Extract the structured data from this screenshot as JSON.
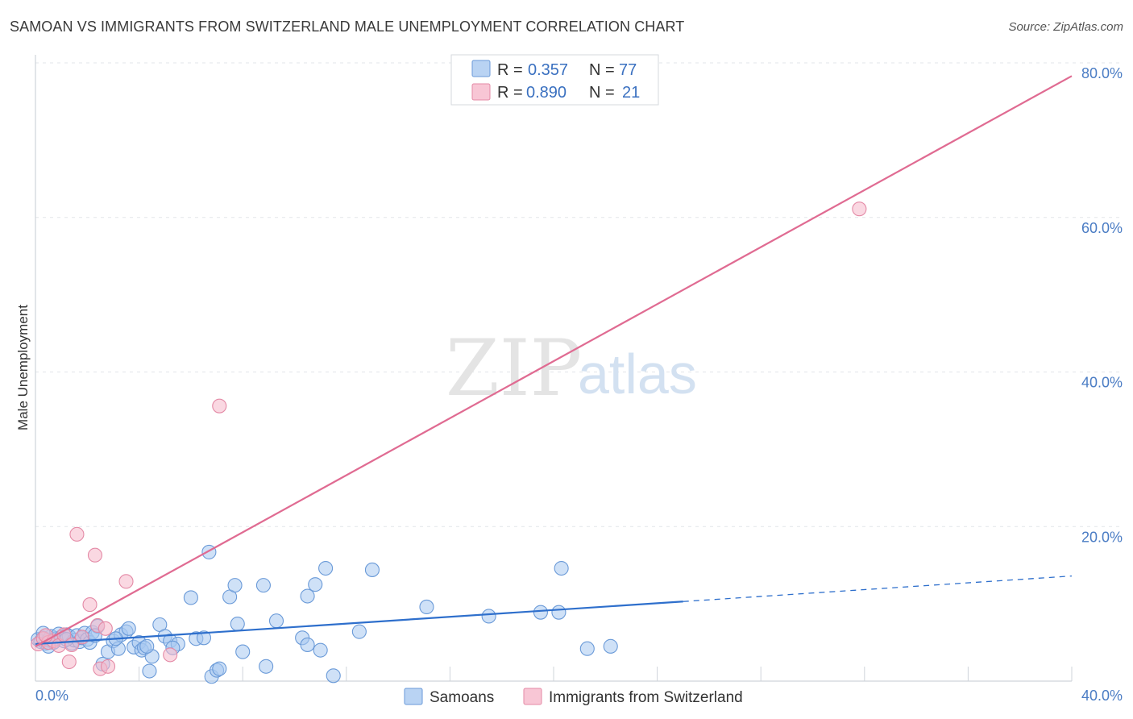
{
  "header": {
    "title": "SAMOAN VS IMMIGRANTS FROM SWITZERLAND MALE UNEMPLOYMENT CORRELATION CHART",
    "source": "Source: ZipAtlas.com"
  },
  "watermark": {
    "zip": "ZIP",
    "atlas": "atlas"
  },
  "legend_top": {
    "rows": [
      {
        "r_label": "R =",
        "r_value": "0.357",
        "n_label": "N =",
        "n_value": "77",
        "color": "#a8c8f0",
        "stroke": "#6a9ad8"
      },
      {
        "r_label": "R =",
        "r_value": "0.890",
        "n_label": "N =",
        "n_value": "21",
        "color": "#f6b8cb",
        "stroke": "#e48aa6"
      }
    ]
  },
  "legend_bottom": [
    {
      "label": "Samoans",
      "color": "#a8c8f0",
      "stroke": "#6a9ad8"
    },
    {
      "label": "Immigrants from Switzerland",
      "color": "#f6b8cb",
      "stroke": "#e48aa6"
    }
  ],
  "chart_data": {
    "type": "scatter",
    "title": "SAMOAN VS IMMIGRANTS FROM SWITZERLAND MALE UNEMPLOYMENT CORRELATION CHART",
    "xlabel": "",
    "ylabel": "Male Unemployment",
    "xlim": [
      0,
      40
    ],
    "ylim": [
      0,
      80
    ],
    "x_tick_labels": [
      {
        "value": 0,
        "label": "0.0%"
      },
      {
        "value": 40,
        "label": "40.0%"
      }
    ],
    "y_tick_labels": [
      {
        "value": 20,
        "label": "20.0%"
      },
      {
        "value": 40,
        "label": "40.0%"
      },
      {
        "value": 60,
        "label": "60.0%"
      },
      {
        "value": 80,
        "label": "80.0%"
      }
    ],
    "grid": true,
    "series": [
      {
        "name": "Samoans",
        "color": "#a8c8f0",
        "stroke": "#6a9ad8",
        "line_color": "#2e6fcc",
        "trend": {
          "x0": 0,
          "y0": 4.8,
          "x1": 25.0,
          "y1": 10.3,
          "dashed_to_x": 40,
          "dashed_to_y": 13.6
        },
        "points": [
          [
            0.1,
            5.4
          ],
          [
            0.2,
            5.1
          ],
          [
            0.3,
            5.6
          ],
          [
            0.4,
            4.9
          ],
          [
            0.5,
            5.3
          ],
          [
            0.6,
            5.8
          ],
          [
            0.7,
            5.0
          ],
          [
            0.8,
            5.5
          ],
          [
            0.9,
            6.1
          ],
          [
            1.0,
            5.7
          ],
          [
            1.1,
            5.2
          ],
          [
            1.2,
            6.0
          ],
          [
            1.3,
            5.8
          ],
          [
            1.4,
            4.9
          ],
          [
            1.5,
            5.3
          ],
          [
            1.6,
            5.9
          ],
          [
            1.7,
            5.1
          ],
          [
            1.8,
            5.6
          ],
          [
            1.9,
            6.2
          ],
          [
            2.0,
            5.4
          ],
          [
            2.1,
            5.0
          ],
          [
            2.2,
            6.3
          ],
          [
            2.4,
            7.1
          ],
          [
            2.6,
            2.2
          ],
          [
            2.8,
            3.8
          ],
          [
            3.0,
            5.2
          ],
          [
            3.2,
            4.2
          ],
          [
            3.3,
            6.0
          ],
          [
            3.5,
            6.4
          ],
          [
            3.6,
            6.8
          ],
          [
            3.8,
            4.4
          ],
          [
            4.0,
            5.0
          ],
          [
            4.1,
            4.0
          ],
          [
            4.2,
            4.3
          ],
          [
            4.5,
            3.2
          ],
          [
            4.4,
            1.3
          ],
          [
            4.8,
            7.3
          ],
          [
            5.0,
            5.8
          ],
          [
            5.2,
            5.2
          ],
          [
            5.5,
            4.8
          ],
          [
            6.0,
            10.8
          ],
          [
            6.2,
            5.5
          ],
          [
            6.5,
            5.6
          ],
          [
            6.8,
            0.6
          ],
          [
            7.0,
            1.4
          ],
          [
            7.1,
            1.6
          ],
          [
            6.7,
            16.7
          ],
          [
            7.5,
            10.9
          ],
          [
            7.7,
            12.4
          ],
          [
            7.8,
            7.4
          ],
          [
            8.0,
            3.8
          ],
          [
            8.8,
            12.4
          ],
          [
            8.9,
            1.9
          ],
          [
            9.3,
            7.8
          ],
          [
            10.3,
            5.6
          ],
          [
            10.5,
            4.7
          ],
          [
            10.5,
            11.0
          ],
          [
            10.8,
            12.5
          ],
          [
            11.0,
            4.0
          ],
          [
            11.2,
            14.6
          ],
          [
            11.5,
            0.7
          ],
          [
            12.5,
            6.4
          ],
          [
            13.0,
            14.4
          ],
          [
            15.1,
            9.6
          ],
          [
            17.5,
            8.4
          ],
          [
            19.5,
            8.9
          ],
          [
            20.2,
            8.9
          ],
          [
            20.3,
            14.6
          ],
          [
            21.3,
            4.2
          ],
          [
            22.2,
            4.5
          ],
          [
            0.3,
            6.2
          ],
          [
            0.5,
            4.5
          ],
          [
            1.2,
            5.4
          ],
          [
            2.3,
            5.9
          ],
          [
            3.1,
            5.5
          ],
          [
            4.3,
            4.5
          ],
          [
            5.3,
            4.3
          ]
        ]
      },
      {
        "name": "Immigrants from Switzerland",
        "color": "#f6b8cb",
        "stroke": "#e48aa6",
        "line_color": "#e06b92",
        "trend": {
          "x0": 0,
          "y0": 4.5,
          "x1": 40,
          "y1": 78.3
        },
        "points": [
          [
            0.1,
            4.8
          ],
          [
            0.3,
            5.5
          ],
          [
            0.5,
            5.0
          ],
          [
            0.7,
            5.2
          ],
          [
            0.9,
            4.6
          ],
          [
            1.1,
            6.0
          ],
          [
            1.3,
            2.5
          ],
          [
            1.6,
            19.0
          ],
          [
            1.8,
            5.7
          ],
          [
            2.1,
            9.9
          ],
          [
            2.3,
            16.3
          ],
          [
            2.4,
            7.2
          ],
          [
            2.5,
            1.6
          ],
          [
            2.7,
            6.8
          ],
          [
            2.8,
            1.9
          ],
          [
            3.5,
            12.9
          ],
          [
            5.2,
            3.4
          ],
          [
            7.1,
            35.6
          ],
          [
            31.8,
            61.1
          ],
          [
            0.4,
            5.9
          ],
          [
            1.4,
            4.7
          ]
        ]
      }
    ]
  }
}
